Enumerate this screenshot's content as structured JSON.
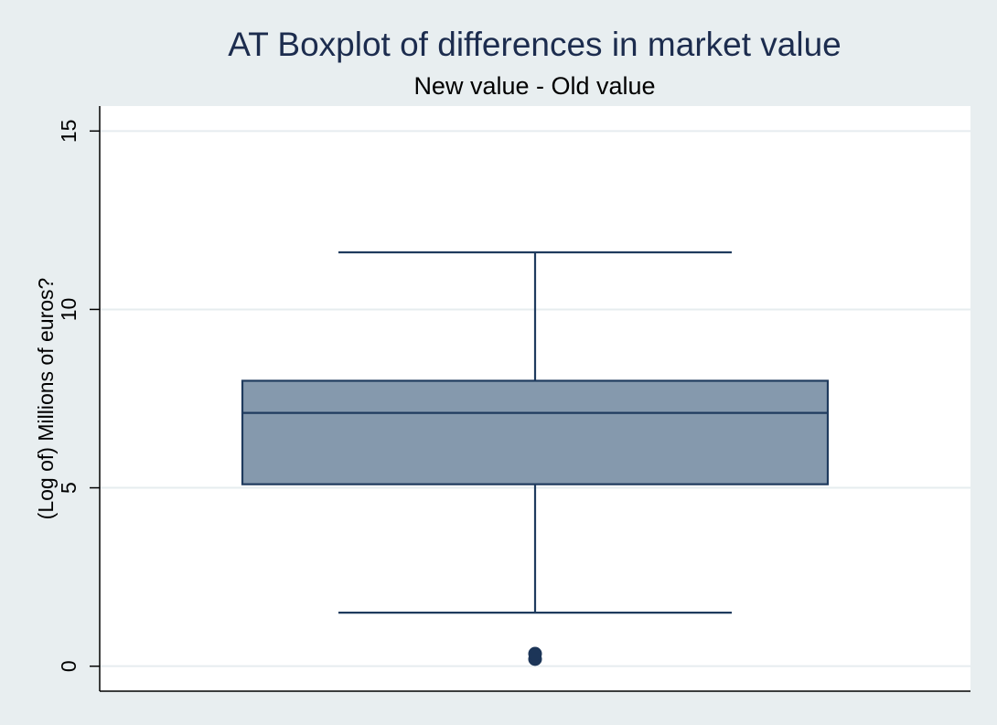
{
  "chart_data": {
    "type": "boxplot",
    "title": "AT Boxplot of differences in market value",
    "subtitle": "New value - Old value",
    "xlabel": "",
    "ylabel": "(Log of) Millions of euros?",
    "ylim": [
      -0.7,
      15.7
    ],
    "yticks": [
      0,
      5,
      10,
      15
    ],
    "grid": true,
    "box": {
      "whisker_low": 1.5,
      "q1": 5.1,
      "median": 7.1,
      "q3": 8.0,
      "whisker_high": 11.6
    },
    "outliers": [
      0.2,
      0.35
    ],
    "colors": {
      "box_fill": "#8599ad",
      "box_line": "#1f3b5e",
      "outlier": "#1c3558",
      "plot_background": "#ffffff",
      "outer_background": "#e8eef0",
      "title": "#1c2c4e"
    }
  }
}
